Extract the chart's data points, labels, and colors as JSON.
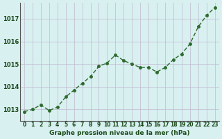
{
  "x": [
    0,
    1,
    2,
    3,
    4,
    5,
    6,
    7,
    8,
    9,
    10,
    11,
    12,
    13,
    14,
    15,
    16,
    17,
    18,
    19,
    20,
    21,
    22,
    23
  ],
  "y": [
    1012.9,
    1013.0,
    1013.2,
    1012.95,
    1013.1,
    1013.55,
    1013.85,
    1014.15,
    1014.45,
    1014.9,
    1015.05,
    1015.4,
    1015.15,
    1015.0,
    1014.85,
    1014.85,
    1014.65,
    1014.85,
    1015.2,
    1015.45,
    1015.9,
    1016.65,
    1017.15,
    1017.5
  ],
  "line_color": "#2d6a2d",
  "marker_color": "#2d6a2d",
  "bg_color": "#d8f0f0",
  "grid_color": "#c0b8d0",
  "axis_label_color": "#1a4a1a",
  "tick_label_color": "#1a4a1a",
  "xlabel": "Graphe pression niveau de la mer (hPa)",
  "ylim": [
    1012.5,
    1017.7
  ],
  "yticks": [
    1013,
    1014,
    1015,
    1016,
    1017
  ],
  "xticks": [
    0,
    1,
    2,
    3,
    4,
    5,
    6,
    7,
    8,
    9,
    10,
    11,
    12,
    13,
    14,
    15,
    16,
    17,
    18,
    19,
    20,
    21,
    22,
    23
  ]
}
